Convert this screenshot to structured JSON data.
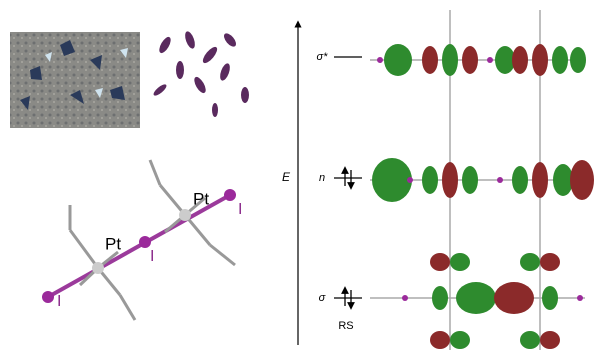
{
  "molecule": {
    "atoms": [
      "Pt",
      "Pt",
      "I",
      "I",
      "I"
    ]
  },
  "energy_diagram": {
    "axis_label": "E",
    "levels": [
      "σ*",
      "n",
      "σ"
    ],
    "footnote": "RS"
  }
}
